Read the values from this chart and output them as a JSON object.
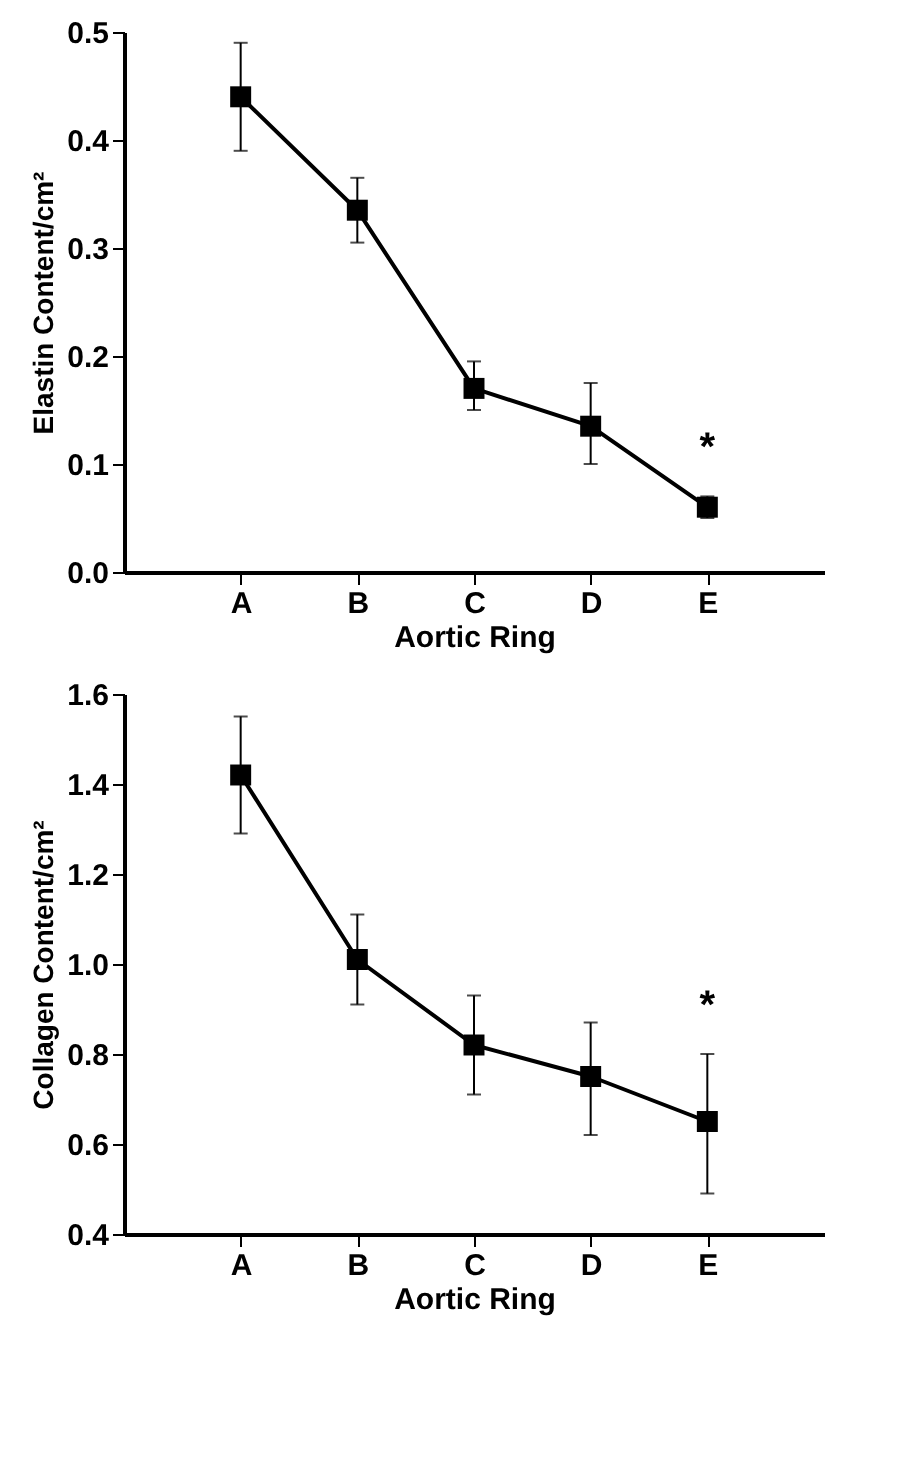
{
  "chart_data": [
    {
      "type": "line",
      "xlabel": "Aortic Ring",
      "ylabel": "Elastin Content/cm²",
      "categories": [
        "A",
        "B",
        "C",
        "D",
        "E"
      ],
      "series": [
        {
          "color": "#000000",
          "values": [
            0.44,
            0.335,
            0.17,
            0.135,
            0.06
          ],
          "errors": [
            [
              0.39,
              0.49
            ],
            [
              0.305,
              0.365
            ],
            [
              0.15,
              0.195
            ],
            [
              0.1,
              0.175
            ],
            [
              0.05,
              0.07
            ]
          ]
        }
      ],
      "ylim": [
        0,
        0.5
      ],
      "yticks": [
        {
          "value": 0,
          "label": "0.0"
        },
        0.1,
        0.2,
        0.3,
        0.4,
        0.5
      ],
      "marker": "square",
      "line_style": "solid",
      "grid": false,
      "annotations": [
        "*"
      ]
    },
    {
      "type": "line",
      "xlabel": "Aortic Ring",
      "ylabel": "Collagen Content/cm²",
      "categories": [
        "A",
        "B",
        "C",
        "D",
        "E"
      ],
      "series": [
        {
          "color": "#000000",
          "values": [
            1.42,
            1.01,
            0.82,
            0.75,
            0.65
          ],
          "errors": [
            [
              1.29,
              1.55
            ],
            [
              0.91,
              1.11
            ],
            [
              0.71,
              0.93
            ],
            [
              0.62,
              0.87
            ],
            [
              0.49,
              0.8
            ]
          ]
        }
      ],
      "ylim": [
        0.4,
        1.6
      ],
      "yticks": [
        0.4,
        0.6,
        0.8,
        {
          "value": 1,
          "label": "1.0"
        },
        1.2,
        1.4,
        1.6
      ],
      "marker": "square",
      "line_style": "solid",
      "grid": false,
      "annotations": [
        "*"
      ]
    }
  ]
}
